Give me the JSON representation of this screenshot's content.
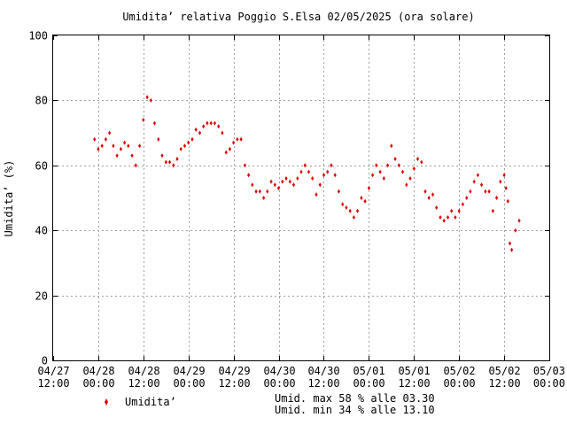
{
  "chart_data": {
    "type": "scatter",
    "title": "Umidita’ relativa Poggio S.Elsa 02/05/2025 (ora solare)",
    "xlabel": "",
    "ylabel": "Umidita’ (%)",
    "ylim": [
      0,
      100
    ],
    "yticks": [
      0,
      20,
      40,
      60,
      80,
      100
    ],
    "xlim": [
      "2025-04-27T12:00",
      "2025-05-03T00:00"
    ],
    "xticks": [
      {
        "t": "2025-04-27T12:00",
        "date": "04/27",
        "time": "12:00"
      },
      {
        "t": "2025-04-28T00:00",
        "date": "04/28",
        "time": "00:00"
      },
      {
        "t": "2025-04-28T12:00",
        "date": "04/28",
        "time": "12:00"
      },
      {
        "t": "2025-04-29T00:00",
        "date": "04/29",
        "time": "00:00"
      },
      {
        "t": "2025-04-29T12:00",
        "date": "04/29",
        "time": "12:00"
      },
      {
        "t": "2025-04-30T00:00",
        "date": "04/30",
        "time": "00:00"
      },
      {
        "t": "2025-04-30T12:00",
        "date": "04/30",
        "time": "12:00"
      },
      {
        "t": "2025-05-01T00:00",
        "date": "05/01",
        "time": "00:00"
      },
      {
        "t": "2025-05-01T12:00",
        "date": "05/01",
        "time": "12:00"
      },
      {
        "t": "2025-05-02T00:00",
        "date": "05/02",
        "time": "00:00"
      },
      {
        "t": "2025-05-02T12:00",
        "date": "05/02",
        "time": "12:00"
      },
      {
        "t": "2025-05-03T00:00",
        "date": "05/03",
        "time": "00:00"
      }
    ],
    "grid": true,
    "legend_position": "bottom-left",
    "series": [
      {
        "name": "Umidita’",
        "color": "#e00000",
        "points": [
          [
            "2025-04-27T23:00",
            68
          ],
          [
            "2025-04-28T00:00",
            65
          ],
          [
            "2025-04-28T01:00",
            66
          ],
          [
            "2025-04-28T02:00",
            68
          ],
          [
            "2025-04-28T03:00",
            70
          ],
          [
            "2025-04-28T04:00",
            66
          ],
          [
            "2025-04-28T05:00",
            63
          ],
          [
            "2025-04-28T06:00",
            65
          ],
          [
            "2025-04-28T07:00",
            67
          ],
          [
            "2025-04-28T08:00",
            66
          ],
          [
            "2025-04-28T09:00",
            63
          ],
          [
            "2025-04-28T10:00",
            60
          ],
          [
            "2025-04-28T11:00",
            66
          ],
          [
            "2025-04-28T12:00",
            74
          ],
          [
            "2025-04-28T13:00",
            81
          ],
          [
            "2025-04-28T14:00",
            80
          ],
          [
            "2025-04-28T15:00",
            73
          ],
          [
            "2025-04-28T16:00",
            68
          ],
          [
            "2025-04-28T17:00",
            63
          ],
          [
            "2025-04-28T18:00",
            61
          ],
          [
            "2025-04-28T19:00",
            61
          ],
          [
            "2025-04-28T20:00",
            60
          ],
          [
            "2025-04-28T21:00",
            62
          ],
          [
            "2025-04-28T22:00",
            65
          ],
          [
            "2025-04-28T23:00",
            66
          ],
          [
            "2025-04-29T00:00",
            67
          ],
          [
            "2025-04-29T01:00",
            68
          ],
          [
            "2025-04-29T02:00",
            71
          ],
          [
            "2025-04-29T03:00",
            70
          ],
          [
            "2025-04-29T04:00",
            72
          ],
          [
            "2025-04-29T05:00",
            73
          ],
          [
            "2025-04-29T06:00",
            73
          ],
          [
            "2025-04-29T07:00",
            73
          ],
          [
            "2025-04-29T08:00",
            72
          ],
          [
            "2025-04-29T09:00",
            70
          ],
          [
            "2025-04-29T10:00",
            64
          ],
          [
            "2025-04-29T11:00",
            65
          ],
          [
            "2025-04-29T12:00",
            67
          ],
          [
            "2025-04-29T13:00",
            68
          ],
          [
            "2025-04-29T14:00",
            68
          ],
          [
            "2025-04-29T15:00",
            60
          ],
          [
            "2025-04-29T16:00",
            57
          ],
          [
            "2025-04-29T17:00",
            54
          ],
          [
            "2025-04-29T18:00",
            52
          ],
          [
            "2025-04-29T19:00",
            52
          ],
          [
            "2025-04-29T20:00",
            50
          ],
          [
            "2025-04-29T21:00",
            52
          ],
          [
            "2025-04-29T22:00",
            55
          ],
          [
            "2025-04-29T23:00",
            54
          ],
          [
            "2025-04-30T00:00",
            53
          ],
          [
            "2025-04-30T01:00",
            55
          ],
          [
            "2025-04-30T02:00",
            56
          ],
          [
            "2025-04-30T03:00",
            55
          ],
          [
            "2025-04-30T04:00",
            54
          ],
          [
            "2025-04-30T05:00",
            56
          ],
          [
            "2025-04-30T06:00",
            58
          ],
          [
            "2025-04-30T07:00",
            60
          ],
          [
            "2025-04-30T08:00",
            58
          ],
          [
            "2025-04-30T09:00",
            56
          ],
          [
            "2025-04-30T10:00",
            51
          ],
          [
            "2025-04-30T11:00",
            54
          ],
          [
            "2025-04-30T12:00",
            57
          ],
          [
            "2025-04-30T13:00",
            58
          ],
          [
            "2025-04-30T14:00",
            60
          ],
          [
            "2025-04-30T15:00",
            57
          ],
          [
            "2025-04-30T16:00",
            52
          ],
          [
            "2025-04-30T17:00",
            48
          ],
          [
            "2025-04-30T18:00",
            47
          ],
          [
            "2025-04-30T19:00",
            46
          ],
          [
            "2025-04-30T20:00",
            44
          ],
          [
            "2025-04-30T21:00",
            46
          ],
          [
            "2025-04-30T22:00",
            50
          ],
          [
            "2025-04-30T23:00",
            49
          ],
          [
            "2025-05-01T00:00",
            53
          ],
          [
            "2025-05-01T01:00",
            57
          ],
          [
            "2025-05-01T02:00",
            60
          ],
          [
            "2025-05-01T03:00",
            58
          ],
          [
            "2025-05-01T04:00",
            56
          ],
          [
            "2025-05-01T05:00",
            60
          ],
          [
            "2025-05-01T06:00",
            66
          ],
          [
            "2025-05-01T07:00",
            62
          ],
          [
            "2025-05-01T08:00",
            60
          ],
          [
            "2025-05-01T09:00",
            58
          ],
          [
            "2025-05-01T10:00",
            54
          ],
          [
            "2025-05-01T11:00",
            56
          ],
          [
            "2025-05-01T12:00",
            59
          ],
          [
            "2025-05-01T13:00",
            62
          ],
          [
            "2025-05-01T14:00",
            61
          ],
          [
            "2025-05-01T15:00",
            52
          ],
          [
            "2025-05-01T16:00",
            50
          ],
          [
            "2025-05-01T17:00",
            51
          ],
          [
            "2025-05-01T18:00",
            47
          ],
          [
            "2025-05-01T19:00",
            44
          ],
          [
            "2025-05-01T20:00",
            43
          ],
          [
            "2025-05-01T21:00",
            44
          ],
          [
            "2025-05-01T22:00",
            46
          ],
          [
            "2025-05-01T23:00",
            44
          ],
          [
            "2025-05-02T00:00",
            46
          ],
          [
            "2025-05-02T01:00",
            48
          ],
          [
            "2025-05-02T02:00",
            50
          ],
          [
            "2025-05-02T03:00",
            52
          ],
          [
            "2025-05-02T04:00",
            55
          ],
          [
            "2025-05-02T05:00",
            57
          ],
          [
            "2025-05-02T06:00",
            54
          ],
          [
            "2025-05-02T07:00",
            52
          ],
          [
            "2025-05-02T08:00",
            52
          ],
          [
            "2025-05-02T09:00",
            46
          ],
          [
            "2025-05-02T10:00",
            50
          ],
          [
            "2025-05-02T11:00",
            55
          ],
          [
            "2025-05-02T12:00",
            57
          ],
          [
            "2025-05-02T12:30",
            53
          ],
          [
            "2025-05-02T13:00",
            49
          ],
          [
            "2025-05-02T13:30",
            36
          ],
          [
            "2025-05-02T14:00",
            34
          ],
          [
            "2025-05-02T15:00",
            40
          ],
          [
            "2025-05-02T16:00",
            43
          ]
        ]
      }
    ]
  },
  "legend": {
    "label": "Umidita’"
  },
  "annotations": {
    "max_line": "Umid. max 58 % alle 03.30",
    "min_line": "Umid. min 34 % alle 13.10"
  }
}
